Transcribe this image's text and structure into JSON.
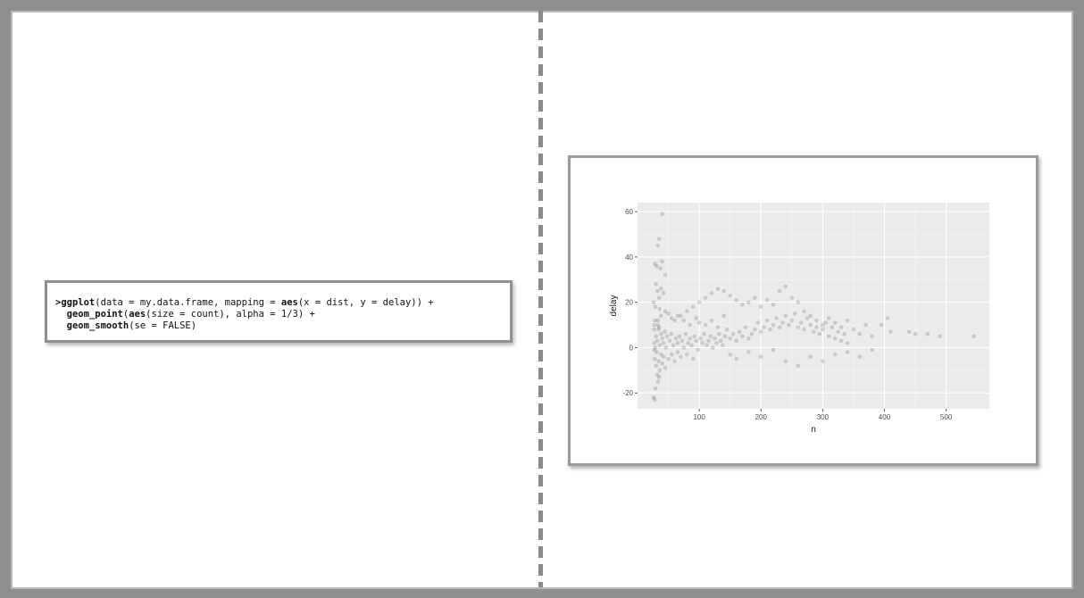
{
  "code": {
    "lines": [
      {
        "prompt": ">",
        "fn": "ggplot",
        "pre": "(data = my.data.frame, mapping = ",
        "fn2": "aes",
        "post": "(x = dist, y = delay)) +"
      },
      {
        "prompt": "  ",
        "fn": "geom_point",
        "pre": "(",
        "fn2": "aes",
        "post": "(size = count), alpha = 1/3) +"
      },
      {
        "prompt": "  ",
        "fn": "geom_smooth",
        "pre": "(se = FALSE)",
        "fn2": "",
        "post": ""
      }
    ]
  },
  "chart_data": {
    "type": "scatter",
    "xlabel": "n",
    "ylabel": "delay",
    "xlim": [
      0,
      570
    ],
    "ylim": [
      -27,
      64
    ],
    "xticks": [
      100,
      200,
      300,
      400,
      500
    ],
    "yticks": [
      -20,
      0,
      20,
      40,
      60
    ],
    "grid": true,
    "point_color": "#000000",
    "point_alpha": 0.15,
    "panel_color": "#ebebeb",
    "points": [
      [
        40,
        59
      ],
      [
        35,
        48
      ],
      [
        33,
        45
      ],
      [
        40,
        38
      ],
      [
        28,
        37
      ],
      [
        31,
        36
      ],
      [
        37,
        35
      ],
      [
        45,
        32
      ],
      [
        30,
        28
      ],
      [
        32,
        25
      ],
      [
        35,
        22
      ],
      [
        38,
        26
      ],
      [
        42,
        24
      ],
      [
        26,
        20
      ],
      [
        29,
        18
      ],
      [
        36,
        17
      ],
      [
        50,
        15
      ],
      [
        60,
        12
      ],
      [
        70,
        14
      ],
      [
        80,
        16
      ],
      [
        90,
        18
      ],
      [
        100,
        20
      ],
      [
        110,
        22
      ],
      [
        120,
        24
      ],
      [
        130,
        26
      ],
      [
        140,
        25
      ],
      [
        150,
        23
      ],
      [
        160,
        21
      ],
      [
        170,
        19
      ],
      [
        180,
        20
      ],
      [
        190,
        22
      ],
      [
        200,
        18
      ],
      [
        210,
        21
      ],
      [
        220,
        19
      ],
      [
        230,
        25
      ],
      [
        240,
        27
      ],
      [
        250,
        22
      ],
      [
        260,
        20
      ],
      [
        270,
        16
      ],
      [
        280,
        14
      ],
      [
        290,
        12
      ],
      [
        300,
        10
      ],
      [
        310,
        13
      ],
      [
        320,
        11
      ],
      [
        330,
        9
      ],
      [
        340,
        12
      ],
      [
        350,
        8
      ],
      [
        360,
        6
      ],
      [
        370,
        10
      ],
      [
        380,
        5
      ],
      [
        395,
        10
      ],
      [
        405,
        13
      ],
      [
        410,
        7
      ],
      [
        440,
        7
      ],
      [
        450,
        6
      ],
      [
        470,
        6
      ],
      [
        490,
        5
      ],
      [
        545,
        5
      ],
      [
        30,
        5
      ],
      [
        32,
        3
      ],
      [
        34,
        8
      ],
      [
        36,
        1
      ],
      [
        38,
        6
      ],
      [
        40,
        4
      ],
      [
        42,
        2
      ],
      [
        44,
        7
      ],
      [
        46,
        0
      ],
      [
        48,
        5
      ],
      [
        52,
        3
      ],
      [
        55,
        6
      ],
      [
        58,
        1
      ],
      [
        62,
        4
      ],
      [
        65,
        2
      ],
      [
        68,
        5
      ],
      [
        72,
        3
      ],
      [
        75,
        0
      ],
      [
        78,
        6
      ],
      [
        82,
        2
      ],
      [
        85,
        4
      ],
      [
        88,
        1
      ],
      [
        92,
        5
      ],
      [
        95,
        3
      ],
      [
        98,
        -1
      ],
      [
        102,
        4
      ],
      [
        105,
        2
      ],
      [
        108,
        6
      ],
      [
        112,
        1
      ],
      [
        115,
        3
      ],
      [
        118,
        5
      ],
      [
        122,
        0
      ],
      [
        125,
        4
      ],
      [
        128,
        2
      ],
      [
        132,
        6
      ],
      [
        135,
        3
      ],
      [
        138,
        1
      ],
      [
        142,
        5
      ],
      [
        145,
        8
      ],
      [
        150,
        4
      ],
      [
        155,
        6
      ],
      [
        160,
        3
      ],
      [
        165,
        7
      ],
      [
        170,
        5
      ],
      [
        175,
        9
      ],
      [
        180,
        4
      ],
      [
        185,
        6
      ],
      [
        190,
        8
      ],
      [
        195,
        11
      ],
      [
        200,
        7
      ],
      [
        205,
        9
      ],
      [
        210,
        12
      ],
      [
        215,
        8
      ],
      [
        220,
        10
      ],
      [
        225,
        13
      ],
      [
        230,
        9
      ],
      [
        235,
        11
      ],
      [
        240,
        14
      ],
      [
        245,
        10
      ],
      [
        250,
        12
      ],
      [
        255,
        15
      ],
      [
        260,
        9
      ],
      [
        265,
        11
      ],
      [
        270,
        8
      ],
      [
        275,
        13
      ],
      [
        280,
        10
      ],
      [
        285,
        7
      ],
      [
        290,
        9
      ],
      [
        295,
        6
      ],
      [
        300,
        8
      ],
      [
        305,
        11
      ],
      [
        310,
        5
      ],
      [
        315,
        9
      ],
      [
        320,
        4
      ],
      [
        325,
        7
      ],
      [
        330,
        3
      ],
      [
        335,
        6
      ],
      [
        340,
        2
      ],
      [
        28,
        -5
      ],
      [
        30,
        -8
      ],
      [
        32,
        -12
      ],
      [
        34,
        -6
      ],
      [
        36,
        -10
      ],
      [
        38,
        -3
      ],
      [
        40,
        -7
      ],
      [
        42,
        -4
      ],
      [
        45,
        -9
      ],
      [
        50,
        -5
      ],
      [
        55,
        -3
      ],
      [
        60,
        -6
      ],
      [
        65,
        -2
      ],
      [
        70,
        -4
      ],
      [
        80,
        -3
      ],
      [
        90,
        -5
      ],
      [
        26,
        -22
      ],
      [
        28,
        -23
      ],
      [
        33,
        -15
      ],
      [
        35,
        -13
      ],
      [
        29,
        -18
      ],
      [
        150,
        -3
      ],
      [
        160,
        -5
      ],
      [
        180,
        -2
      ],
      [
        200,
        -4
      ],
      [
        220,
        -1
      ],
      [
        240,
        -6
      ],
      [
        260,
        -8
      ],
      [
        280,
        -4
      ],
      [
        300,
        -6
      ],
      [
        320,
        -3
      ],
      [
        340,
        -2
      ],
      [
        360,
        -4
      ],
      [
        380,
        -1
      ],
      [
        110,
        10
      ],
      [
        120,
        12
      ],
      [
        130,
        9
      ],
      [
        140,
        14
      ],
      [
        100,
        11
      ],
      [
        95,
        13
      ],
      [
        85,
        10
      ],
      [
        75,
        12
      ],
      [
        65,
        14
      ],
      [
        55,
        13
      ],
      [
        45,
        16
      ],
      [
        38,
        14
      ],
      [
        33,
        12
      ],
      [
        27,
        10
      ],
      [
        27,
        2
      ],
      [
        27,
        -1
      ],
      [
        27,
        8
      ],
      [
        28,
        12
      ],
      [
        29,
        0
      ],
      [
        31,
        -2
      ],
      [
        33,
        10
      ],
      [
        35,
        9
      ]
    ]
  }
}
